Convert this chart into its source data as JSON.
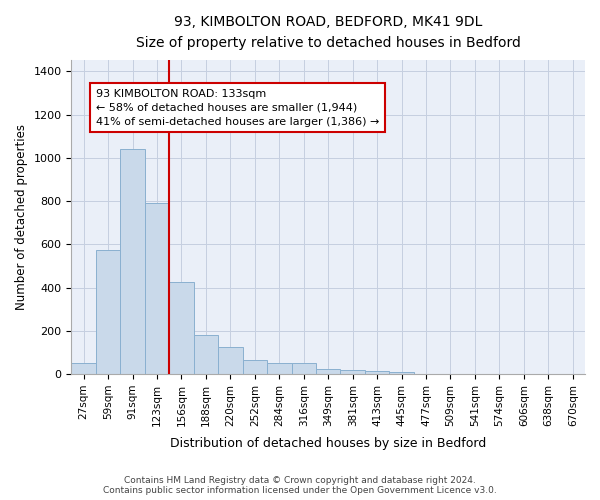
{
  "title_line1": "93, KIMBOLTON ROAD, BEDFORD, MK41 9DL",
  "title_line2": "Size of property relative to detached houses in Bedford",
  "xlabel": "Distribution of detached houses by size in Bedford",
  "ylabel": "Number of detached properties",
  "bar_color": "#c9d9ea",
  "bar_edge_color": "#8ab0d0",
  "grid_color": "#c5cfe0",
  "bg_color": "#eaeff8",
  "annotation_box_color": "#cc0000",
  "vline_color": "#cc0000",
  "vline_x_idx": 3,
  "annotation_text": "93 KIMBOLTON ROAD: 133sqm\n← 58% of detached houses are smaller (1,944)\n41% of semi-detached houses are larger (1,386) →",
  "categories": [
    "27sqm",
    "59sqm",
    "91sqm",
    "123sqm",
    "156sqm",
    "188sqm",
    "220sqm",
    "252sqm",
    "284sqm",
    "316sqm",
    "349sqm",
    "381sqm",
    "413sqm",
    "445sqm",
    "477sqm",
    "509sqm",
    "541sqm",
    "574sqm",
    "606sqm",
    "638sqm",
    "670sqm"
  ],
  "values": [
    50,
    575,
    1040,
    790,
    425,
    180,
    125,
    65,
    50,
    50,
    25,
    20,
    15,
    8,
    0,
    0,
    0,
    0,
    0,
    0,
    0
  ],
  "ylim": [
    0,
    1450
  ],
  "yticks": [
    0,
    200,
    400,
    600,
    800,
    1000,
    1200,
    1400
  ],
  "footnote": "Contains HM Land Registry data © Crown copyright and database right 2024.\nContains public sector information licensed under the Open Government Licence v3.0.",
  "figsize": [
    6.0,
    5.0
  ],
  "dpi": 100
}
